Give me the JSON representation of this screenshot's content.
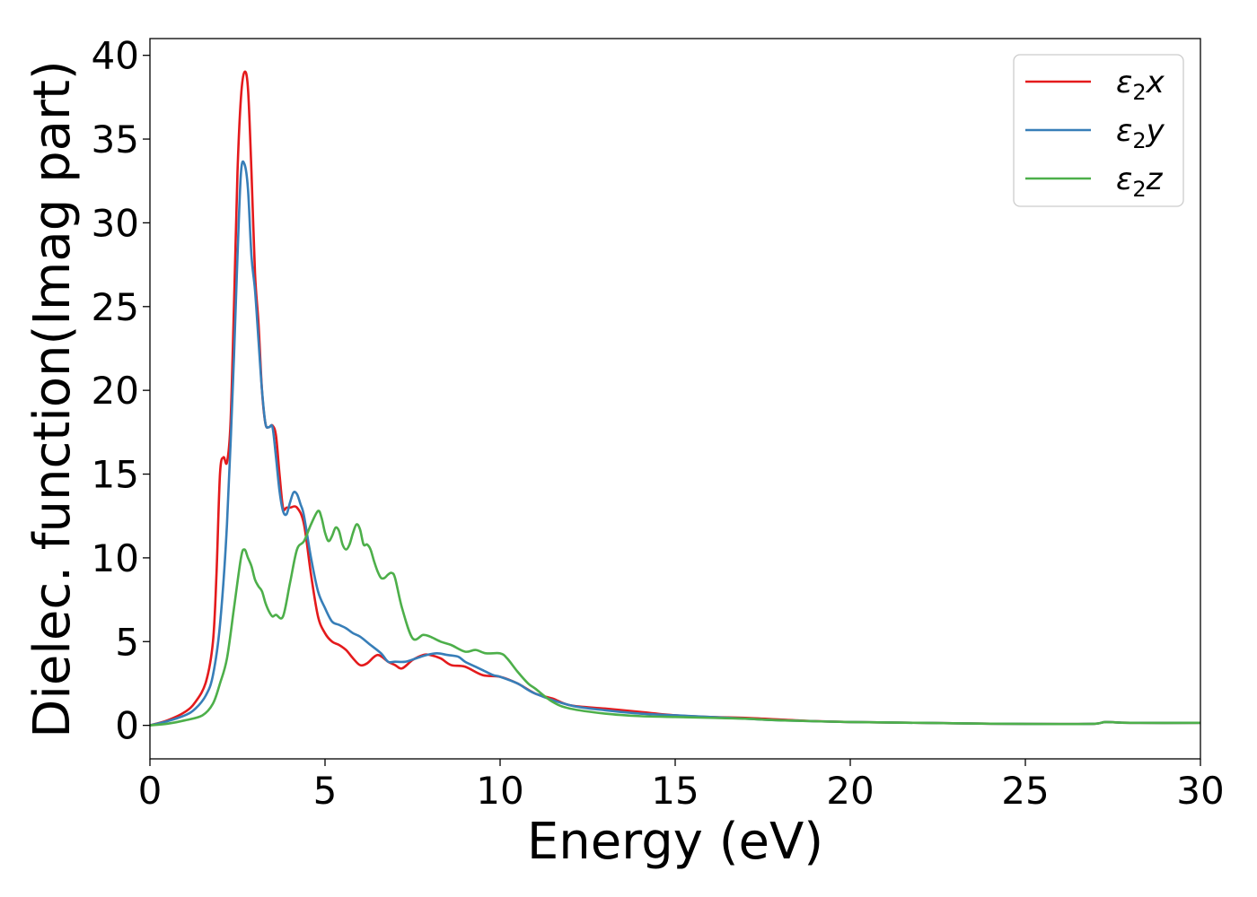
{
  "chart_data": {
    "type": "line",
    "xlabel": "Energy (eV)",
    "ylabel": "Dielec. function(Imag part)",
    "xlim": [
      0,
      30
    ],
    "ylim": [
      -2,
      41
    ],
    "xticks": [
      0,
      5,
      10,
      15,
      20,
      25,
      30
    ],
    "yticks": [
      0,
      5,
      10,
      15,
      20,
      25,
      30,
      35,
      40
    ],
    "grid": false,
    "legend_position": "top-right",
    "series": [
      {
        "name": "ε2x",
        "legend": {
          "base": "ε",
          "sub": "2",
          "var": "x"
        },
        "color": "#e41a1c",
        "x": [
          0,
          0.5,
          1,
          1.3,
          1.6,
          1.8,
          1.9,
          2.0,
          2.1,
          2.2,
          2.3,
          2.4,
          2.5,
          2.6,
          2.7,
          2.8,
          2.9,
          3.0,
          3.1,
          3.2,
          3.3,
          3.4,
          3.5,
          3.6,
          3.7,
          3.8,
          3.9,
          4.0,
          4.2,
          4.4,
          4.6,
          4.8,
          5.0,
          5.2,
          5.4,
          5.6,
          5.8,
          6.0,
          6.2,
          6.5,
          6.8,
          7.0,
          7.2,
          7.5,
          7.8,
          8.0,
          8.3,
          8.6,
          9.0,
          9.5,
          10.0,
          10.5,
          11.0,
          11.5,
          12,
          13,
          14,
          15,
          16,
          17,
          18,
          19,
          20,
          22,
          24,
          26,
          27,
          27.3,
          28,
          30
        ],
        "y": [
          0,
          0.3,
          0.8,
          1.4,
          2.6,
          5,
          9,
          15,
          16,
          15.7,
          18,
          25,
          33,
          37.5,
          39,
          38,
          33,
          27,
          24,
          20,
          18,
          17.8,
          17.9,
          17.3,
          15,
          13,
          13,
          13,
          13,
          12,
          9,
          6.5,
          5.5,
          5,
          4.8,
          4.5,
          4,
          3.6,
          3.7,
          4.2,
          3.8,
          3.6,
          3.4,
          3.9,
          4.2,
          4.2,
          4.0,
          3.6,
          3.5,
          3.0,
          2.9,
          2.5,
          1.9,
          1.6,
          1.2,
          1.0,
          0.8,
          0.6,
          0.5,
          0.45,
          0.35,
          0.25,
          0.2,
          0.15,
          0.1,
          0.08,
          0.1,
          0.2,
          0.15,
          0.15
        ]
      },
      {
        "name": "ε2y",
        "legend": {
          "base": "ε",
          "sub": "2",
          "var": "y"
        },
        "color": "#377eb8",
        "x": [
          0,
          0.5,
          1,
          1.3,
          1.6,
          1.8,
          2.0,
          2.2,
          2.4,
          2.5,
          2.6,
          2.7,
          2.8,
          2.9,
          3.0,
          3.1,
          3.2,
          3.3,
          3.4,
          3.5,
          3.6,
          3.7,
          3.8,
          3.9,
          4.0,
          4.1,
          4.2,
          4.3,
          4.4,
          4.6,
          4.8,
          5.0,
          5.2,
          5.4,
          5.6,
          5.8,
          6.0,
          6.3,
          6.6,
          6.8,
          7.0,
          7.3,
          7.6,
          7.9,
          8.2,
          8.5,
          8.8,
          9.0,
          9.3,
          9.5,
          9.8,
          10.0,
          10.5,
          11,
          12,
          13,
          14,
          15,
          16,
          17,
          18,
          20,
          22,
          24,
          26,
          27,
          27.3,
          28,
          30
        ],
        "y": [
          0,
          0.25,
          0.6,
          1.0,
          1.8,
          3,
          6,
          12,
          22,
          28,
          33,
          33.5,
          32,
          28,
          26,
          23,
          20,
          18,
          17.8,
          17.8,
          16,
          14,
          12.8,
          12.6,
          13.3,
          13.9,
          13.8,
          13.2,
          12.5,
          10,
          8,
          7,
          6.2,
          6.0,
          5.8,
          5.5,
          5.3,
          4.8,
          4.3,
          3.8,
          3.8,
          3.8,
          4.0,
          4.2,
          4.3,
          4.2,
          4.1,
          3.8,
          3.5,
          3.3,
          3.0,
          2.9,
          2.5,
          1.9,
          1.2,
          0.9,
          0.7,
          0.6,
          0.5,
          0.4,
          0.3,
          0.2,
          0.15,
          0.1,
          0.08,
          0.1,
          0.2,
          0.15,
          0.15
        ]
      },
      {
        "name": "ε2z",
        "legend": {
          "base": "ε",
          "sub": "2",
          "var": "z"
        },
        "color": "#4daf4a",
        "x": [
          0,
          0.5,
          1,
          1.5,
          1.8,
          2.0,
          2.2,
          2.4,
          2.6,
          2.7,
          2.8,
          2.9,
          3.0,
          3.1,
          3.2,
          3.3,
          3.4,
          3.5,
          3.6,
          3.8,
          4.0,
          4.2,
          4.4,
          4.6,
          4.8,
          4.9,
          5.0,
          5.1,
          5.2,
          5.3,
          5.4,
          5.5,
          5.6,
          5.7,
          5.8,
          5.9,
          6.0,
          6.1,
          6.2,
          6.3,
          6.4,
          6.5,
          6.6,
          6.7,
          6.8,
          6.9,
          7.0,
          7.2,
          7.5,
          7.8,
          8.0,
          8.3,
          8.6,
          9.0,
          9.3,
          9.6,
          10.0,
          10.2,
          10.5,
          10.8,
          11.0,
          11.5,
          12,
          13,
          14,
          15,
          16,
          17,
          18,
          20,
          22,
          24,
          26,
          27,
          27.3,
          28,
          30
        ],
        "y": [
          0,
          0.1,
          0.3,
          0.6,
          1.3,
          2.5,
          4,
          7,
          10,
          10.5,
          10,
          9.5,
          8.7,
          8.3,
          8,
          7.3,
          6.8,
          6.5,
          6.6,
          6.5,
          8.5,
          10.5,
          11,
          12,
          12.8,
          12.4,
          11.5,
          11,
          11.3,
          11.8,
          11.6,
          10.8,
          10.5,
          10.8,
          11.5,
          12,
          11.7,
          10.8,
          10.8,
          10.5,
          9.8,
          9.2,
          8.8,
          8.8,
          9.0,
          9.1,
          8.8,
          7.0,
          5.2,
          5.4,
          5.3,
          5.0,
          4.8,
          4.4,
          4.5,
          4.3,
          4.3,
          4.0,
          3.2,
          2.5,
          2.2,
          1.4,
          1.0,
          0.7,
          0.55,
          0.5,
          0.45,
          0.4,
          0.3,
          0.2,
          0.15,
          0.1,
          0.08,
          0.1,
          0.2,
          0.15,
          0.15
        ]
      }
    ]
  }
}
